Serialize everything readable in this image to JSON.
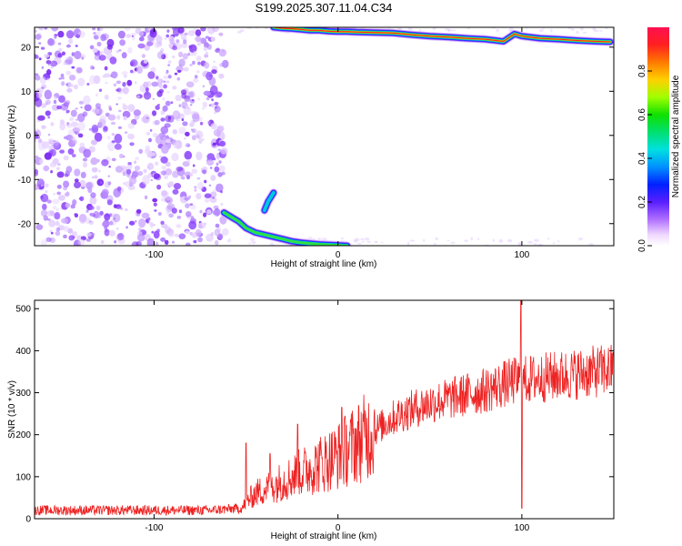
{
  "title": "S199.2025.307.11.04.C34",
  "chart_data": [
    {
      "type": "heatmap",
      "xlabel": "Height of straight line (km)",
      "ylabel": "Frequency (Hz)",
      "xlim": [
        -165,
        150
      ],
      "ylim": [
        -25,
        24.5
      ],
      "x_ticks": [
        -100,
        0,
        100
      ],
      "y_ticks": [
        -20,
        -10,
        0,
        10,
        20
      ],
      "colorbar": {
        "label": "Normalized spectral amplitude",
        "range": [
          0,
          1
        ],
        "ticks": [
          0.0,
          0.2,
          0.4,
          0.6,
          0.8
        ]
      },
      "ridges": [
        {
          "x": [
            -62,
            -58,
            -54,
            -50,
            -45,
            -40,
            -35,
            -30,
            -25,
            -20,
            -15,
            -10,
            -5,
            0,
            5
          ],
          "y": [
            -17.5,
            -18.5,
            -19.5,
            -21,
            -22,
            -22.5,
            -23,
            -23.5,
            -24,
            -24.3,
            -24.5,
            -24.7,
            -24.8,
            -24.9,
            -25
          ]
        },
        {
          "x": [
            -35,
            -38,
            -40
          ],
          "y": [
            -13,
            -15,
            -17
          ]
        },
        {
          "x": [
            -35,
            -30,
            -25,
            -20,
            -15,
            -10,
            -5,
            0,
            5,
            10,
            20,
            30,
            40,
            50,
            60,
            70,
            80,
            86,
            90,
            96,
            100,
            110,
            120,
            130,
            140,
            148
          ],
          "y": [
            24.5,
            24.3,
            24.2,
            24.0,
            23.8,
            23.8,
            23.6,
            23.5,
            23.5,
            23.4,
            23.3,
            23.2,
            22.8,
            22.5,
            22.3,
            22.0,
            21.8,
            21.5,
            21.3,
            23.0,
            22.5,
            22.0,
            21.8,
            21.5,
            21.3,
            21.2
          ]
        }
      ]
    },
    {
      "type": "line",
      "xlabel": "Height of straight line (km)",
      "ylabel": "SNR (10 * v/v)",
      "xlim": [
        -165,
        150
      ],
      "ylim": [
        0,
        520
      ],
      "x_ticks": [
        -100,
        0,
        100
      ],
      "y_ticks": [
        0,
        100,
        200,
        300,
        400,
        500
      ],
      "color": "#ee2222",
      "trend": {
        "x": [
          -165,
          -130,
          -100,
          -70,
          -52,
          -50,
          -45,
          -40,
          -30,
          -20,
          -10,
          0,
          10,
          20,
          30,
          40,
          50,
          60,
          70,
          80,
          90,
          98,
          100,
          102,
          110,
          120,
          130,
          140,
          150
        ],
        "y": [
          20,
          20,
          20,
          20,
          25,
          40,
          60,
          70,
          90,
          110,
          130,
          150,
          180,
          210,
          240,
          260,
          275,
          285,
          295,
          305,
          320,
          330,
          320,
          330,
          335,
          340,
          345,
          350,
          355
        ]
      },
      "spikes": [
        {
          "x": -50,
          "y": 180
        },
        {
          "x": -37,
          "y": 155
        },
        {
          "x": -22,
          "y": 225
        },
        {
          "x": 2,
          "y": 265
        },
        {
          "x": 99.5,
          "y": 520
        },
        {
          "x": 100,
          "y": 25
        },
        {
          "x": 150,
          "y": 390
        }
      ]
    }
  ]
}
